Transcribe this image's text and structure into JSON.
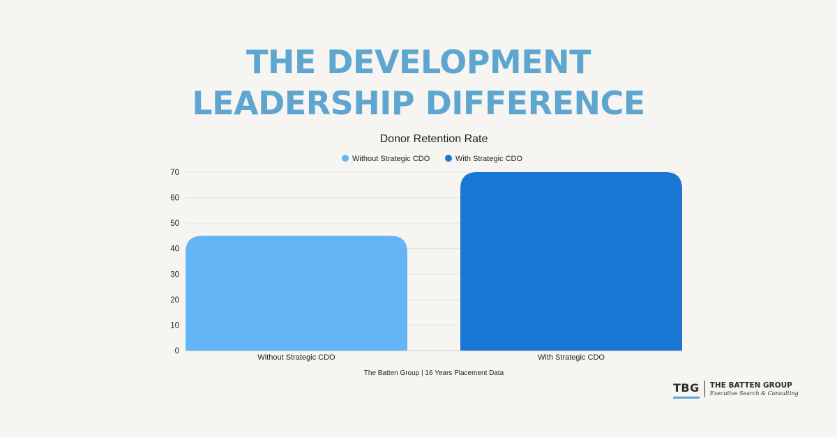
{
  "headline": {
    "line1": "THE DEVELOPMENT",
    "line2": "LEADERSHIP DIFFERENCE"
  },
  "chart_data": {
    "type": "bar",
    "title": "Donor Retention Rate",
    "categories": [
      "Without Strategic CDO",
      "With Strategic CDO"
    ],
    "values": [
      45,
      70
    ],
    "colors": [
      "#64b5f6",
      "#1976d2"
    ],
    "legend": [
      {
        "label": "Without Strategic CDO",
        "color": "#64b5f6"
      },
      {
        "label": "With Strategic CDO",
        "color": "#1976d2"
      }
    ],
    "legend_position": "top-center",
    "ylim": [
      0,
      70
    ],
    "yticks": [
      0,
      10,
      20,
      30,
      40,
      50,
      60,
      70
    ],
    "xlabel": "",
    "ylabel": "",
    "grid": true,
    "source_note": "The Batten Group | 16 Years Placement Data"
  },
  "logo": {
    "mark": "TBG",
    "name": "THE BATTEN GROUP",
    "tagline": "Executive Search & Consulting",
    "accent_color": "#5ea6cf"
  }
}
